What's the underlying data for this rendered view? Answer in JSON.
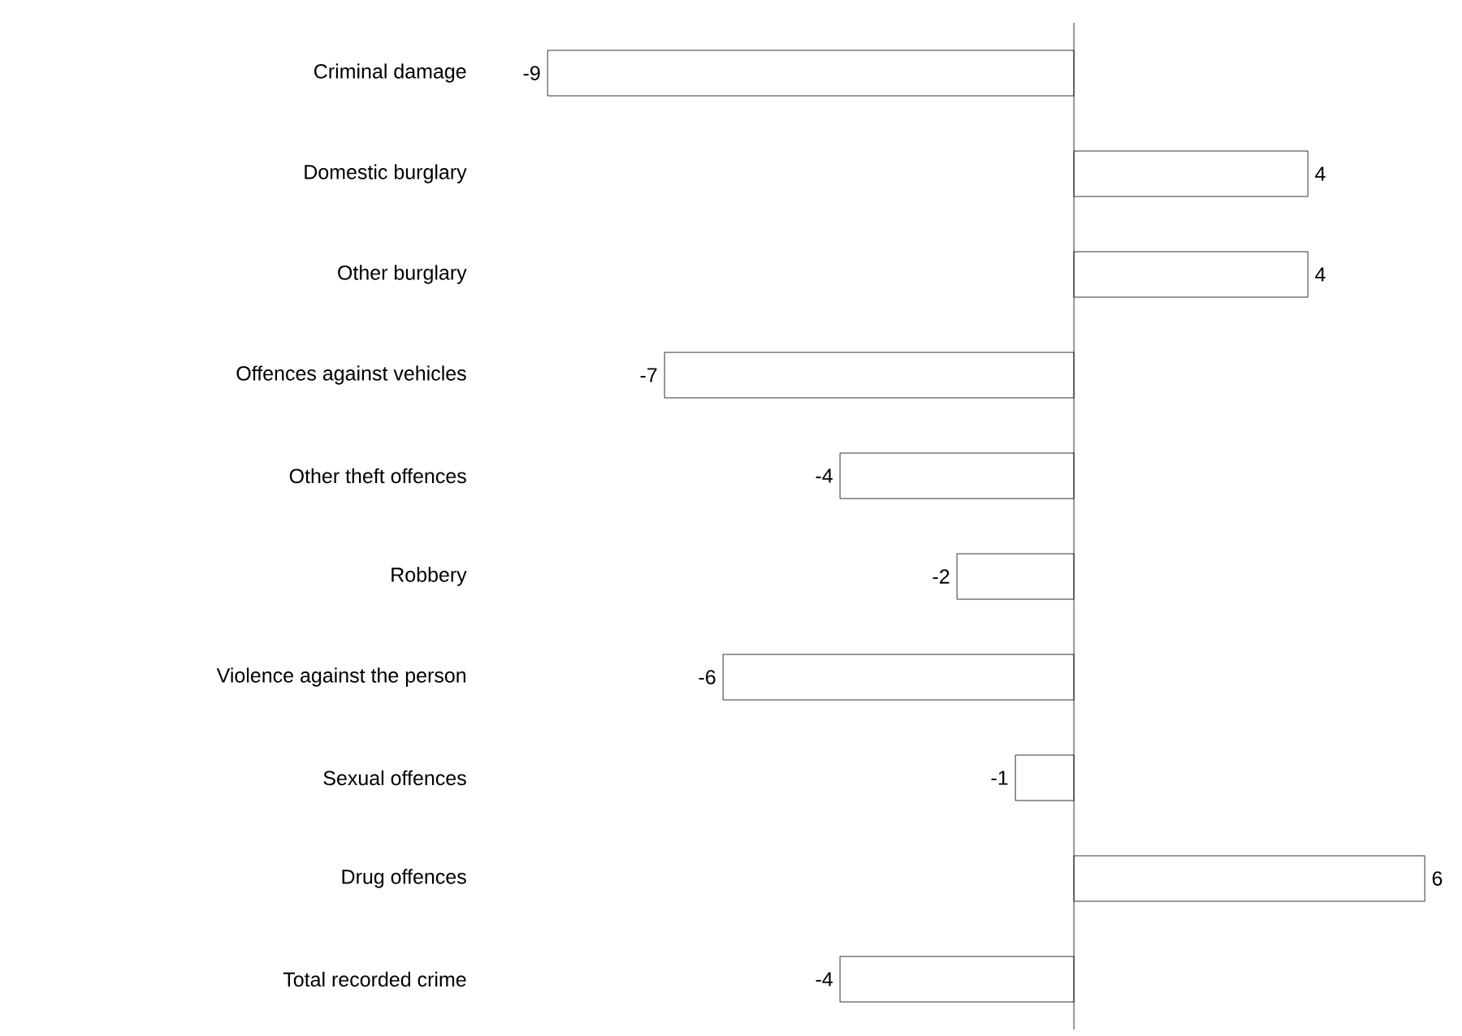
{
  "chart_data": {
    "type": "bar",
    "orientation": "horizontal",
    "data_labels": true,
    "color": "#ffffff",
    "categories": [
      "Criminal damage",
      "Domestic burglary",
      "Other burglary",
      "Offences against vehicles",
      "Other theft offences",
      "Robbery",
      "Violence against the person",
      "Sexual offences",
      "Drug offences",
      "Total recorded crime"
    ],
    "values": [
      -9,
      4,
      4,
      -7,
      -4,
      -2,
      -6,
      -1,
      6,
      -4
    ]
  }
}
